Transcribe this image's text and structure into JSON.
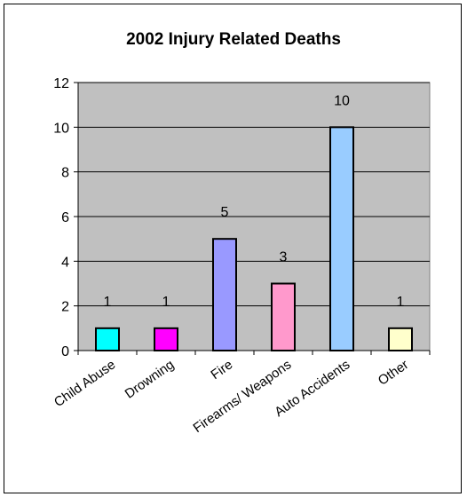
{
  "chart_data": {
    "type": "bar",
    "title": "2002 Injury Related Deaths",
    "categories": [
      "Child Abuse",
      "Drowning",
      "Fire",
      "Firearms/ Weapons",
      "Auto Accidents",
      "Other"
    ],
    "values": [
      1,
      1,
      5,
      3,
      10,
      1
    ],
    "data_labels": [
      "1",
      "1",
      "5",
      "3",
      "10",
      "1"
    ],
    "bar_colors": [
      "#00ffff",
      "#ff00ff",
      "#9999ff",
      "#ff99cc",
      "#99ccff",
      "#ffffcc"
    ],
    "plot_background": "#c0c0c0",
    "ylim": [
      0,
      12
    ],
    "yticks": [
      0,
      2,
      4,
      6,
      8,
      10,
      12
    ],
    "ytick_labels": [
      "0",
      "2",
      "4",
      "6",
      "8",
      "10",
      "12"
    ],
    "grid": true,
    "legend": "none"
  }
}
